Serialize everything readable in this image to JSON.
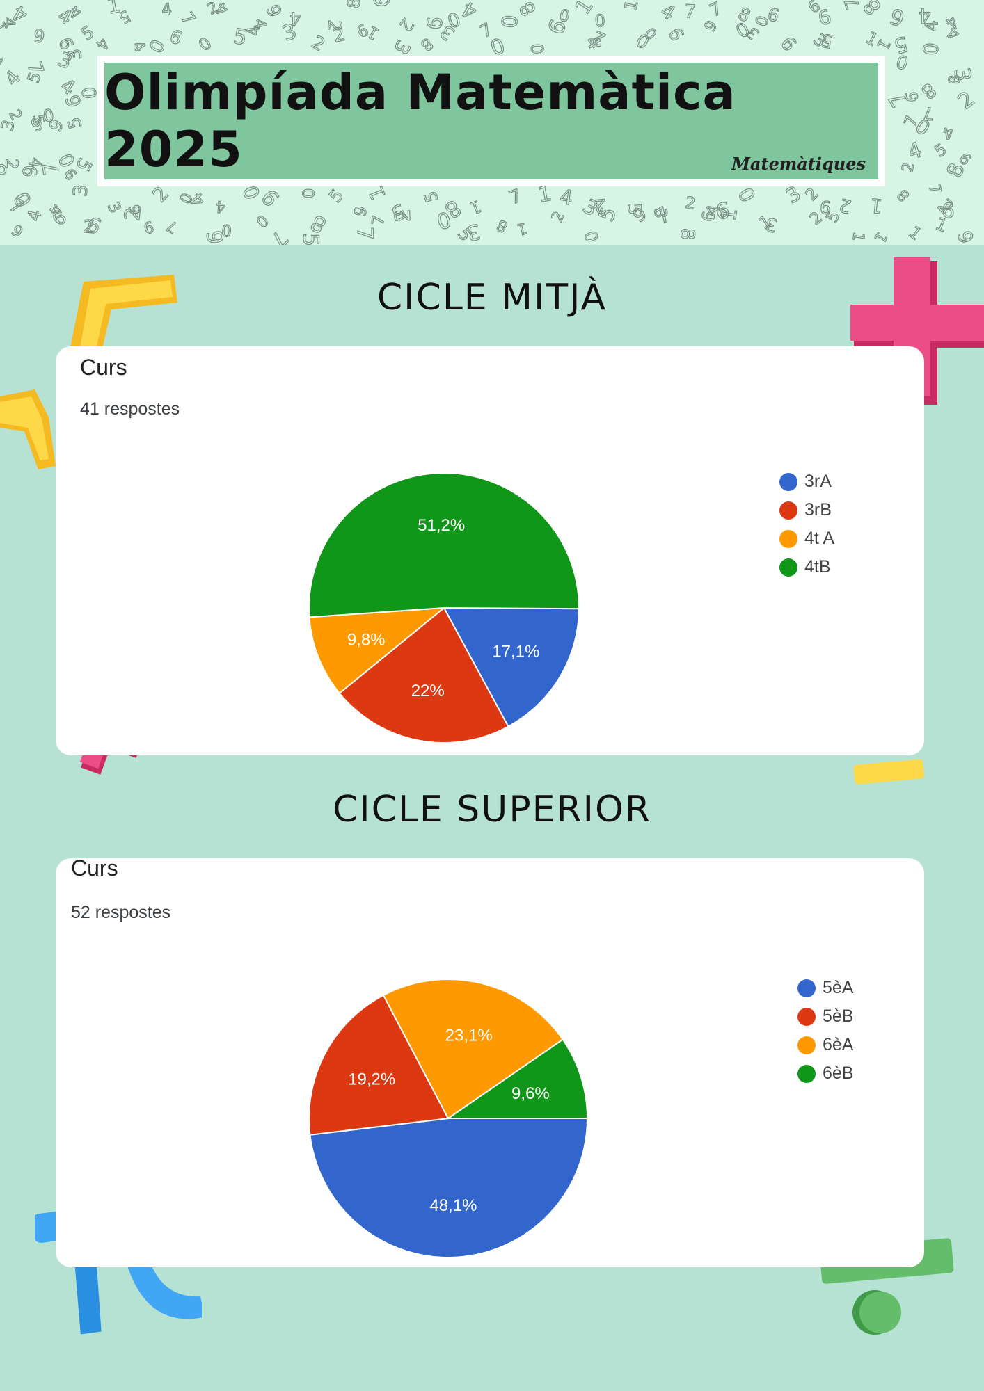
{
  "header": {
    "title": "Olimpíada Matemàtica 2025",
    "logo_text": "Matemàtiques"
  },
  "sections": [
    {
      "heading": "CICLE MITJÀ",
      "card_title": "Curs",
      "responses": "41 respostes"
    },
    {
      "heading": "CICLE SUPERIOR",
      "card_title": "Curs",
      "responses": "52 respostes"
    }
  ],
  "chart_data": [
    {
      "type": "pie",
      "title": "Curs",
      "subtitle": "41 respostes",
      "legend_position": "right",
      "slices": [
        {
          "label": "3rA",
          "value": 17.1,
          "display": "17,1%",
          "color": "#3366cc"
        },
        {
          "label": "3rB",
          "value": 22.0,
          "display": "22%",
          "color": "#dc3912"
        },
        {
          "label": "4t A",
          "value": 9.8,
          "display": "9,8%",
          "color": "#ff9900"
        },
        {
          "label": "4tB",
          "value": 51.2,
          "display": "51,2%",
          "color": "#109618"
        }
      ]
    },
    {
      "type": "pie",
      "title": "Curs",
      "subtitle": "52 respostes",
      "legend_position": "right",
      "slices": [
        {
          "label": "5èA",
          "value": 48.1,
          "display": "48,1%",
          "color": "#3366cc"
        },
        {
          "label": "5èB",
          "value": 19.2,
          "display": "19,2%",
          "color": "#dc3912"
        },
        {
          "label": "6èA",
          "value": 23.1,
          "display": "23,1%",
          "color": "#ff9900"
        },
        {
          "label": "6èB",
          "value": 9.6,
          "display": "9,6%",
          "color": "#109618"
        }
      ]
    }
  ]
}
